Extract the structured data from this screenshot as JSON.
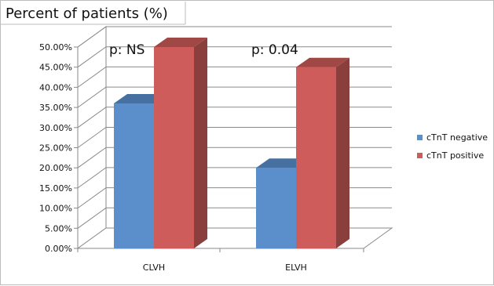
{
  "chart_data": {
    "type": "bar",
    "variant": "3d-clustered-column",
    "ylabel": "Percent of patients (%)",
    "categories": [
      "CLVH",
      "ELVH"
    ],
    "series": [
      {
        "name": "cTnT negative",
        "values": [
          36.0,
          20.0
        ],
        "color": "#5a8fcc"
      },
      {
        "name": "cTnT positive",
        "values": [
          50.0,
          45.0
        ],
        "color": "#cd5c5a"
      }
    ],
    "yticks": [
      "0.00%",
      "5.00%",
      "10.00%",
      "15.00%",
      "20.00%",
      "25.00%",
      "30.00%",
      "35.00%",
      "40.00%",
      "45.00%",
      "50.00%"
    ],
    "ylim": [
      0,
      50
    ],
    "grid": true,
    "legend_position": "right",
    "annotations": [
      {
        "text": "p: NS",
        "category": "CLVH"
      },
      {
        "text": "p: 0.04",
        "category": "ELVH"
      }
    ]
  }
}
